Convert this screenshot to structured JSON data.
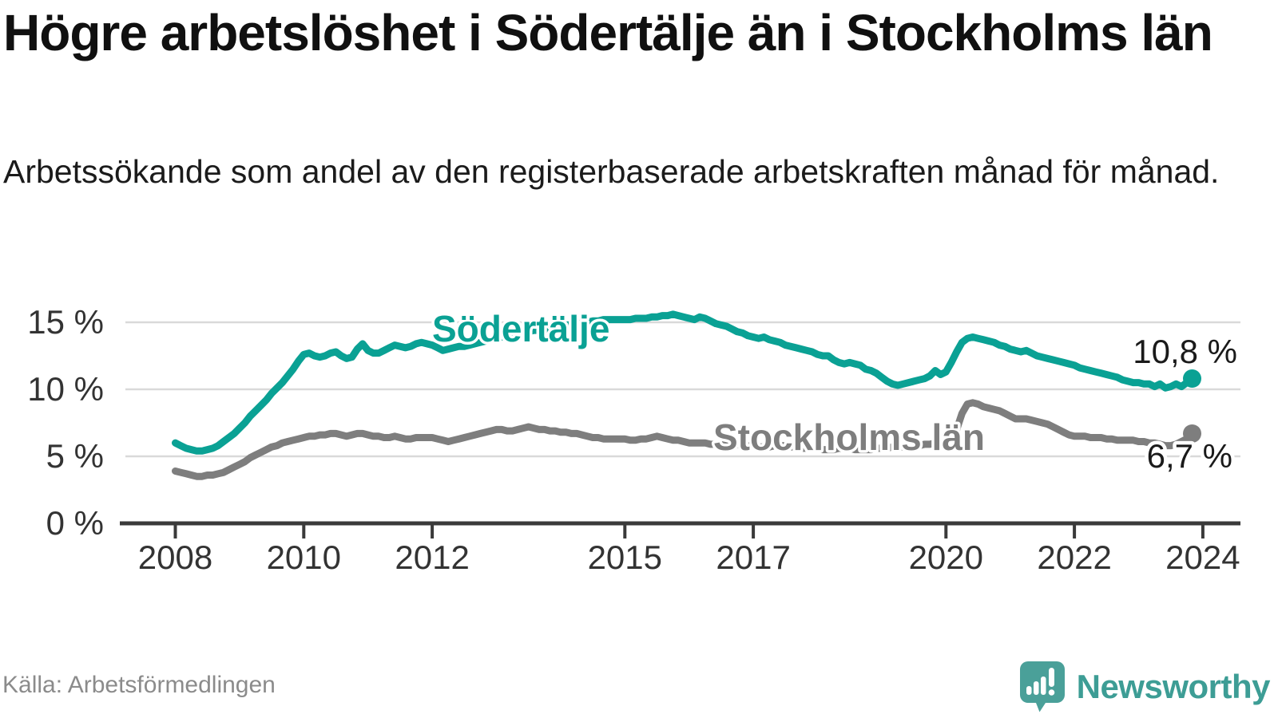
{
  "header": {
    "title": "Högre arbetslöshet i Södertälje än i Stockholms län",
    "subtitle": "Arbetssökande som andel av den registerbaserade arbetskraften månad för månad."
  },
  "footer": {
    "source": "Källa: Arbetsförmedlingen",
    "brand": "Newsworthy"
  },
  "colors": {
    "sodertalje": "#0aa194",
    "stockholm": "#7e7e7e",
    "grid": "#d9d9d9",
    "axis": "#3a3a3a",
    "brand_teal": "#4aa099"
  },
  "chart_data": {
    "type": "line",
    "y_unit": "%",
    "x_start": 2008.0,
    "x_step": 0.0833333,
    "x_end_label_note": "series run monthly Jan 2008 - Nov 2023",
    "xlim": [
      2007.2,
      2024.6
    ],
    "ylim": [
      0,
      16.5
    ],
    "grid": true,
    "legend_position": "inline-labels",
    "y_ticks": [
      {
        "label": "0 %",
        "value": 0
      },
      {
        "label": "5 %",
        "value": 5
      },
      {
        "label": "10 %",
        "value": 10
      },
      {
        "label": "15 %",
        "value": 15
      }
    ],
    "x_ticks": [
      {
        "label": "2008",
        "value": 2008
      },
      {
        "label": "2010",
        "value": 2010
      },
      {
        "label": "2012",
        "value": 2012
      },
      {
        "label": "2015",
        "value": 2015
      },
      {
        "label": "2017",
        "value": 2017
      },
      {
        "label": "2020",
        "value": 2020
      },
      {
        "label": "2022",
        "value": 2022
      },
      {
        "label": "2024",
        "value": 2024
      }
    ],
    "series": [
      {
        "name": "Södertälje",
        "color": "#0aa194",
        "end_label": "10,8 %",
        "end_value": 10.8,
        "values": [
          6.0,
          5.8,
          5.6,
          5.5,
          5.4,
          5.4,
          5.5,
          5.6,
          5.8,
          6.1,
          6.4,
          6.7,
          7.1,
          7.5,
          8.0,
          8.4,
          8.8,
          9.2,
          9.7,
          10.1,
          10.5,
          11.0,
          11.5,
          12.1,
          12.6,
          12.7,
          12.5,
          12.4,
          12.5,
          12.7,
          12.8,
          12.5,
          12.3,
          12.4,
          13.0,
          13.4,
          12.9,
          12.7,
          12.7,
          12.9,
          13.1,
          13.3,
          13.2,
          13.1,
          13.2,
          13.4,
          13.5,
          13.4,
          13.3,
          13.1,
          12.9,
          13.0,
          13.1,
          13.2,
          13.2,
          13.3,
          13.4,
          13.5,
          13.6,
          13.7,
          13.8,
          13.9,
          14.0,
          14.1,
          14.2,
          14.3,
          14.3,
          14.4,
          14.4,
          14.5,
          14.5,
          14.6,
          14.7,
          14.8,
          14.8,
          14.9,
          15.0,
          15.0,
          15.1,
          15.1,
          15.2,
          15.2,
          15.2,
          15.2,
          15.2,
          15.2,
          15.3,
          15.3,
          15.3,
          15.4,
          15.4,
          15.5,
          15.5,
          15.6,
          15.5,
          15.4,
          15.3,
          15.2,
          15.4,
          15.3,
          15.1,
          14.9,
          14.8,
          14.7,
          14.5,
          14.3,
          14.2,
          14.0,
          13.9,
          13.8,
          13.9,
          13.7,
          13.6,
          13.5,
          13.3,
          13.2,
          13.1,
          13.0,
          12.9,
          12.8,
          12.6,
          12.5,
          12.5,
          12.2,
          12.0,
          11.9,
          12.0,
          11.9,
          11.8,
          11.5,
          11.4,
          11.2,
          10.9,
          10.6,
          10.4,
          10.3,
          10.4,
          10.5,
          10.6,
          10.7,
          10.8,
          11.0,
          11.4,
          11.1,
          11.3,
          12.0,
          12.8,
          13.5,
          13.8,
          13.9,
          13.8,
          13.7,
          13.6,
          13.5,
          13.3,
          13.2,
          13.0,
          12.9,
          12.8,
          12.9,
          12.7,
          12.5,
          12.4,
          12.3,
          12.2,
          12.1,
          12.0,
          11.9,
          11.8,
          11.6,
          11.5,
          11.4,
          11.3,
          11.2,
          11.1,
          11.0,
          10.9,
          10.7,
          10.6,
          10.5,
          10.5,
          10.4,
          10.4,
          10.2,
          10.4,
          10.1,
          10.2,
          10.4,
          10.2,
          10.5,
          10.8
        ]
      },
      {
        "name": "Stockholms län",
        "color": "#7e7e7e",
        "end_label": "6,7 %",
        "end_value": 6.7,
        "values": [
          3.9,
          3.8,
          3.7,
          3.6,
          3.5,
          3.5,
          3.6,
          3.6,
          3.7,
          3.8,
          4.0,
          4.2,
          4.4,
          4.6,
          4.9,
          5.1,
          5.3,
          5.5,
          5.7,
          5.8,
          6.0,
          6.1,
          6.2,
          6.3,
          6.4,
          6.5,
          6.5,
          6.6,
          6.6,
          6.7,
          6.7,
          6.6,
          6.5,
          6.6,
          6.7,
          6.7,
          6.6,
          6.5,
          6.5,
          6.4,
          6.4,
          6.5,
          6.4,
          6.3,
          6.3,
          6.4,
          6.4,
          6.4,
          6.4,
          6.3,
          6.2,
          6.1,
          6.2,
          6.3,
          6.4,
          6.5,
          6.6,
          6.7,
          6.8,
          6.9,
          7.0,
          7.0,
          6.9,
          6.9,
          7.0,
          7.1,
          7.2,
          7.1,
          7.0,
          7.0,
          6.9,
          6.9,
          6.8,
          6.8,
          6.7,
          6.7,
          6.6,
          6.5,
          6.4,
          6.4,
          6.3,
          6.3,
          6.3,
          6.3,
          6.3,
          6.2,
          6.2,
          6.3,
          6.3,
          6.4,
          6.5,
          6.4,
          6.3,
          6.2,
          6.2,
          6.1,
          6.0,
          6.0,
          6.0,
          6.0,
          5.9,
          5.9,
          6.0,
          6.0,
          5.9,
          5.9,
          5.8,
          5.8,
          5.8,
          5.7,
          5.7,
          5.7,
          5.8,
          5.8,
          5.8,
          5.7,
          5.7,
          5.6,
          5.6,
          5.6,
          5.6,
          5.5,
          5.5,
          5.5,
          5.6,
          5.6,
          5.6,
          5.5,
          5.5,
          5.5,
          5.5,
          5.6,
          5.6,
          5.6,
          5.7,
          5.7,
          5.7,
          5.8,
          5.8,
          5.8,
          5.9,
          5.9,
          6.0,
          6.0,
          6.1,
          6.3,
          7.0,
          8.2,
          8.9,
          9.0,
          8.9,
          8.7,
          8.6,
          8.5,
          8.4,
          8.2,
          8.0,
          7.8,
          7.8,
          7.8,
          7.7,
          7.6,
          7.5,
          7.4,
          7.2,
          7.0,
          6.8,
          6.6,
          6.5,
          6.5,
          6.5,
          6.4,
          6.4,
          6.4,
          6.3,
          6.3,
          6.2,
          6.2,
          6.2,
          6.2,
          6.1,
          6.1,
          6.0,
          6.0,
          5.9,
          5.8,
          5.8,
          5.9,
          6.1,
          6.3,
          6.7
        ]
      }
    ]
  }
}
